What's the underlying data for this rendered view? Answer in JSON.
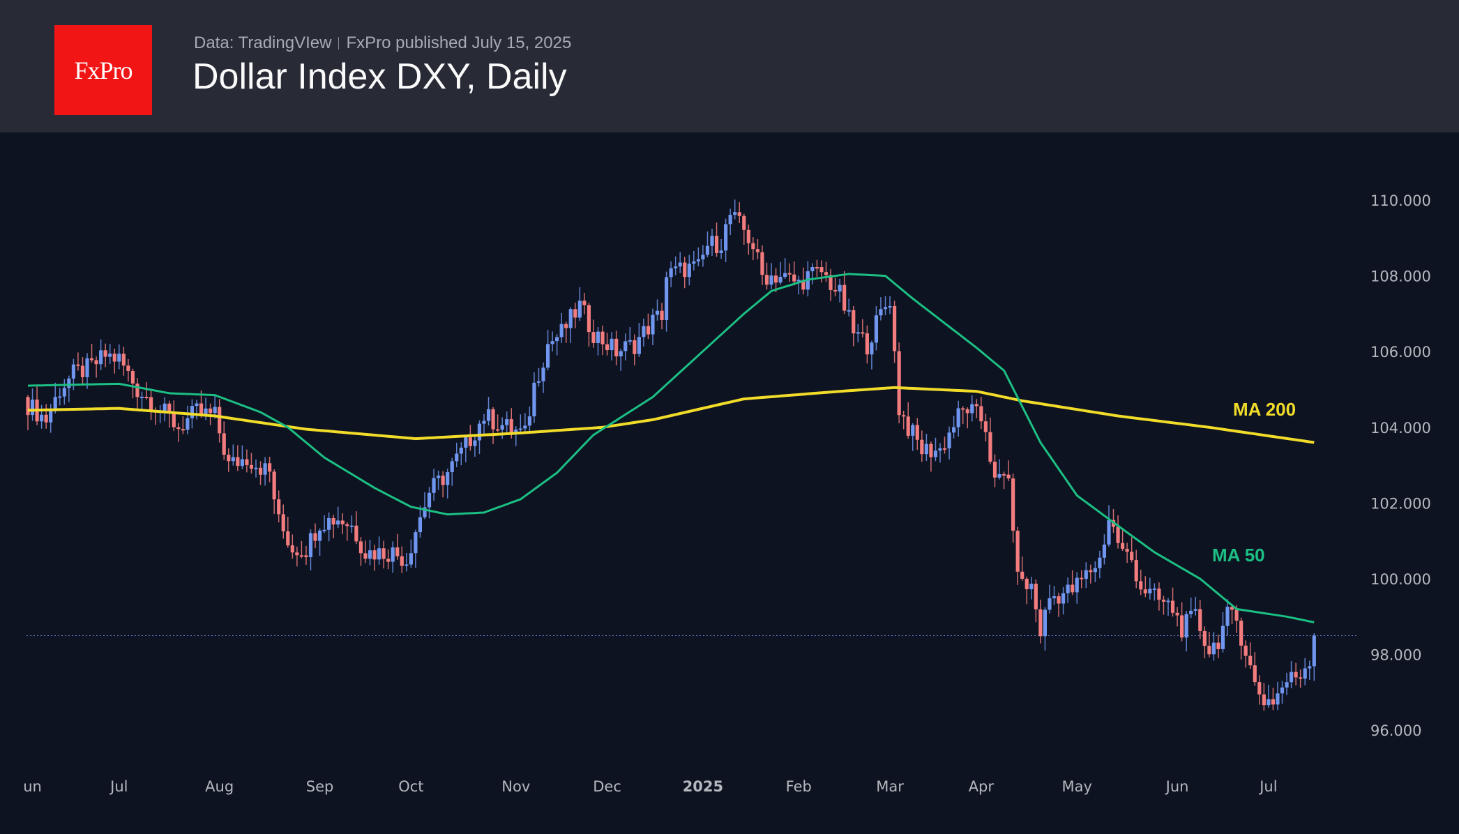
{
  "header": {
    "logo_text": "FxPro",
    "source": "Data: TradingVIew",
    "published": "FxPro published July 15, 2025",
    "title": "Dollar Index DXY, Daily"
  },
  "colors": {
    "up": "#7096f0",
    "down": "#f27c7e",
    "ma50": "#1cbf84",
    "ma200": "#f2dc2a",
    "brand": "#f21515"
  },
  "chart_data": {
    "type": "candlestick",
    "title": "Dollar Index DXY, Daily",
    "ylim": [
      95,
      111.5
    ],
    "y_ticks": [
      "110.000",
      "108.000",
      "106.000",
      "104.000",
      "102.000",
      "100.000",
      "98.000",
      "96.000"
    ],
    "y_tick_values": [
      110,
      108,
      106,
      104,
      102,
      100,
      98,
      96
    ],
    "x_ticks": [
      {
        "label": "un",
        "day": 1
      },
      {
        "label": "Jul",
        "day": 20
      },
      {
        "label": "Aug",
        "day": 42
      },
      {
        "label": "Sep",
        "day": 64
      },
      {
        "label": "Oct",
        "day": 84
      },
      {
        "label": "Nov",
        "day": 107
      },
      {
        "label": "Dec",
        "day": 127
      },
      {
        "label": "2025",
        "day": 148,
        "bold": true
      },
      {
        "label": "Feb",
        "day": 169
      },
      {
        "label": "Mar",
        "day": 189
      },
      {
        "label": "Apr",
        "day": 209
      },
      {
        "label": "May",
        "day": 230
      },
      {
        "label": "Jun",
        "day": 252
      },
      {
        "label": "Jul",
        "day": 272
      }
    ],
    "last_price": 98.5,
    "num_days": 283,
    "close_path": [
      [
        0,
        104.6
      ],
      [
        4,
        104.2
      ],
      [
        7,
        105.0
      ],
      [
        10,
        105.4
      ],
      [
        14,
        105.6
      ],
      [
        17,
        105.9
      ],
      [
        20,
        105.8
      ],
      [
        24,
        105.0
      ],
      [
        28,
        104.6
      ],
      [
        33,
        104.0
      ],
      [
        37,
        104.4
      ],
      [
        41,
        104.3
      ],
      [
        44,
        103.0
      ],
      [
        48,
        103.2
      ],
      [
        53,
        102.8
      ],
      [
        55,
        101.5
      ],
      [
        58,
        100.8
      ],
      [
        61,
        100.8
      ],
      [
        64,
        101.5
      ],
      [
        68,
        101.6
      ],
      [
        71,
        101.4
      ],
      [
        74,
        100.7
      ],
      [
        80,
        100.7
      ],
      [
        83,
        100.5
      ],
      [
        85,
        101.3
      ],
      [
        88,
        102.3
      ],
      [
        92,
        102.8
      ],
      [
        96,
        103.5
      ],
      [
        100,
        104.3
      ],
      [
        105,
        104.0
      ],
      [
        109,
        103.8
      ],
      [
        111,
        105.1
      ],
      [
        114,
        106.2
      ],
      [
        117,
        106.5
      ],
      [
        121,
        107.2
      ],
      [
        124,
        106.5
      ],
      [
        129,
        106.0
      ],
      [
        133,
        106.2
      ],
      [
        137,
        106.8
      ],
      [
        139,
        107.0
      ],
      [
        140,
        108.0
      ],
      [
        144,
        108.2
      ],
      [
        147,
        108.2
      ],
      [
        149,
        108.8
      ],
      [
        152,
        108.9
      ],
      [
        154,
        109.6
      ],
      [
        157,
        109.2
      ],
      [
        159,
        108.8
      ],
      [
        161,
        108.0
      ],
      [
        165,
        108.0
      ],
      [
        169,
        107.8
      ],
      [
        171,
        108.0
      ],
      [
        174,
        108.1
      ],
      [
        178,
        107.5
      ],
      [
        181,
        106.5
      ],
      [
        184,
        106.2
      ],
      [
        187,
        107.0
      ],
      [
        189,
        107.4
      ],
      [
        191,
        104.5
      ],
      [
        193,
        104.0
      ],
      [
        196,
        103.4
      ],
      [
        200,
        103.4
      ],
      [
        204,
        104.3
      ],
      [
        206,
        104.5
      ],
      [
        209,
        104.2
      ],
      [
        210,
        104.0
      ],
      [
        212,
        102.5
      ],
      [
        215,
        102.8
      ],
      [
        216,
        101.0
      ],
      [
        218,
        99.8
      ],
      [
        220,
        99.8
      ],
      [
        222,
        98.6
      ],
      [
        224,
        99.5
      ],
      [
        229,
        99.7
      ],
      [
        232,
        100.1
      ],
      [
        235,
        100.5
      ],
      [
        237,
        101.6
      ],
      [
        240,
        100.7
      ],
      [
        242,
        100.5
      ],
      [
        244,
        99.8
      ],
      [
        247,
        99.5
      ],
      [
        251,
        99.2
      ],
      [
        253,
        98.7
      ],
      [
        256,
        99.0
      ],
      [
        259,
        98.1
      ],
      [
        261,
        98.4
      ],
      [
        263,
        99.0
      ],
      [
        265,
        98.9
      ],
      [
        267,
        98.1
      ],
      [
        269,
        97.2
      ],
      [
        271,
        96.8
      ],
      [
        273,
        96.8
      ],
      [
        276,
        97.3
      ],
      [
        279,
        97.5
      ],
      [
        281,
        97.9
      ],
      [
        282,
        98.6
      ]
    ],
    "series": [
      {
        "name": "MA 50",
        "label": "MA 50",
        "path": [
          [
            0,
            105.1
          ],
          [
            20,
            105.15
          ],
          [
            31,
            104.9
          ],
          [
            41,
            104.85
          ],
          [
            51,
            104.4
          ],
          [
            57,
            104.0
          ],
          [
            65,
            103.2
          ],
          [
            76,
            102.4
          ],
          [
            84,
            101.9
          ],
          [
            92,
            101.7
          ],
          [
            100,
            101.75
          ],
          [
            108,
            102.1
          ],
          [
            116,
            102.8
          ],
          [
            124,
            103.8
          ],
          [
            137,
            104.8
          ],
          [
            147,
            105.9
          ],
          [
            157,
            107.0
          ],
          [
            163,
            107.6
          ],
          [
            171,
            107.9
          ],
          [
            180,
            108.05
          ],
          [
            188,
            108.0
          ],
          [
            194,
            107.4
          ],
          [
            208,
            106.1
          ],
          [
            214,
            105.5
          ],
          [
            222,
            103.6
          ],
          [
            230,
            102.2
          ],
          [
            239,
            101.4
          ],
          [
            247,
            100.7
          ],
          [
            257,
            100.0
          ],
          [
            265,
            99.2
          ],
          [
            276,
            99.0
          ],
          [
            282,
            98.85
          ]
        ]
      },
      {
        "name": "MA 200",
        "label": "MA 200",
        "path": [
          [
            0,
            104.45
          ],
          [
            20,
            104.5
          ],
          [
            41,
            104.3
          ],
          [
            61,
            103.95
          ],
          [
            85,
            103.7
          ],
          [
            108,
            103.85
          ],
          [
            126,
            104.0
          ],
          [
            137,
            104.2
          ],
          [
            157,
            104.75
          ],
          [
            178,
            104.95
          ],
          [
            190,
            105.05
          ],
          [
            208,
            104.95
          ],
          [
            218,
            104.7
          ],
          [
            239,
            104.3
          ],
          [
            259,
            104.0
          ],
          [
            282,
            103.6
          ]
        ]
      }
    ]
  }
}
